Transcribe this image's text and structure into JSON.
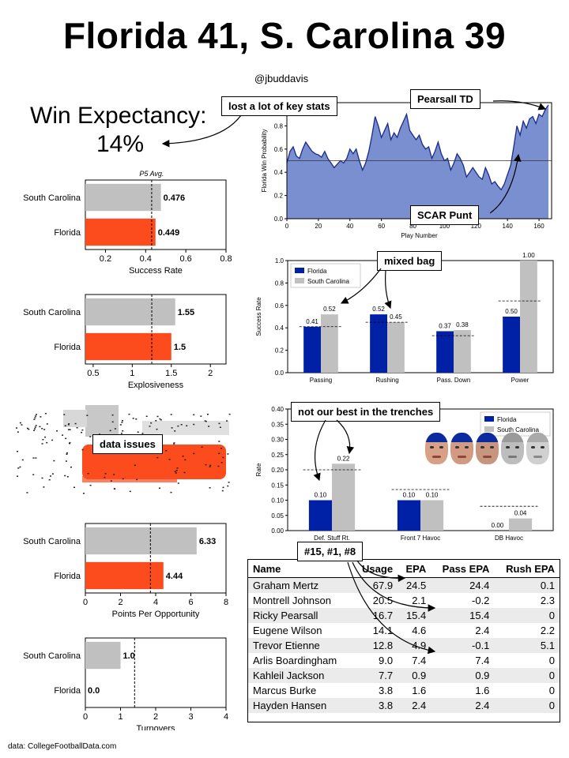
{
  "title": "Florida 41, S. Carolina 39",
  "handle": "@jbuddavis",
  "win_expectancy": {
    "label": "Win Expectancy:",
    "value": "14%"
  },
  "source": "data: CollegeFootballData.com",
  "callouts": {
    "key_stats": "lost a lot of key stats",
    "pearsall": "Pearsall TD",
    "scar_punt": "SCAR Punt",
    "mixed_bag": "mixed bag",
    "trenches": "not our best in the trenches",
    "data_issues": "data issues",
    "players": "#15, #1, #8"
  },
  "colors": {
    "florida_bar": "#fc4c1e",
    "scar_bar": "#c0c0c0",
    "florida_blue": "#0021a5",
    "wp_fill": "#7a8fd0",
    "wp_line": "#1a2a8a"
  },
  "chart_data": [
    {
      "type": "bar",
      "orientation": "horizontal",
      "name": "success_rate",
      "categories": [
        "South Carolina",
        "Florida"
      ],
      "values": [
        0.476,
        0.449
      ],
      "labels": [
        "0.476",
        "0.449"
      ],
      "reference": {
        "label": "P5 Avg.",
        "value": 0.43
      },
      "xlim": [
        0.1,
        0.8
      ],
      "ticks": [
        0.2,
        0.4,
        0.6,
        0.8
      ],
      "tick_labels": [
        "0.2",
        "0.4",
        "0.6",
        "0.8"
      ],
      "xlabel": "Success Rate"
    },
    {
      "type": "bar",
      "orientation": "horizontal",
      "name": "explosiveness",
      "categories": [
        "South Carolina",
        "Florida"
      ],
      "values": [
        1.55,
        1.5
      ],
      "labels": [
        "1.55",
        "1.5"
      ],
      "reference": {
        "value": 1.25
      },
      "xlim": [
        0.4,
        2.2
      ],
      "ticks": [
        0.5,
        1.0,
        1.5,
        2.0
      ],
      "tick_labels": [
        "0.5",
        "1",
        "1.5",
        "2"
      ],
      "xlabel": "Explosiveness"
    },
    {
      "type": "bar",
      "orientation": "horizontal",
      "name": "points_per_opportunity",
      "categories": [
        "South Carolina",
        "Florida"
      ],
      "values": [
        6.33,
        4.44
      ],
      "labels": [
        "6.33",
        "4.44"
      ],
      "reference": {
        "value": 3.7
      },
      "xlim": [
        0,
        8
      ],
      "ticks": [
        0,
        2,
        4,
        6,
        8
      ],
      "tick_labels": [
        "0",
        "2",
        "4",
        "6",
        "8"
      ],
      "xlabel": "Points Per Opportunity"
    },
    {
      "type": "bar",
      "orientation": "horizontal",
      "name": "turnovers",
      "categories": [
        "South Carolina",
        "Florida"
      ],
      "values": [
        1.0,
        0.0
      ],
      "labels": [
        "1.0",
        "0.0"
      ],
      "reference": {
        "value": 1.4
      },
      "xlim": [
        0,
        4
      ],
      "ticks": [
        0,
        1,
        2,
        3,
        4
      ],
      "tick_labels": [
        "0",
        "1",
        "2",
        "3",
        "4"
      ],
      "xlabel": "Turnovers"
    },
    {
      "type": "area",
      "name": "win_probability",
      "ylabel": "Florida Win Probability",
      "xlabel": "Play Number",
      "xlim": [
        0,
        168
      ],
      "ylim": [
        0,
        1
      ],
      "xticks": [
        0,
        20,
        40,
        60,
        80,
        100,
        120,
        140,
        160
      ],
      "yticks": [
        0.0,
        0.2,
        0.4,
        0.6,
        0.8,
        1.0
      ],
      "ytick_labels": [
        "0.0",
        "0.2",
        "0.4",
        "0.6",
        "0.8",
        "1.0"
      ],
      "reference": 0.5,
      "x": [
        0,
        2,
        4,
        6,
        8,
        10,
        12,
        14,
        16,
        18,
        20,
        22,
        24,
        26,
        28,
        30,
        32,
        34,
        36,
        38,
        40,
        42,
        44,
        46,
        48,
        50,
        52,
        54,
        56,
        58,
        60,
        62,
        64,
        66,
        68,
        70,
        72,
        74,
        76,
        78,
        80,
        82,
        84,
        86,
        88,
        90,
        92,
        94,
        96,
        98,
        100,
        102,
        104,
        106,
        108,
        110,
        112,
        114,
        116,
        118,
        120,
        122,
        124,
        126,
        128,
        130,
        132,
        134,
        136,
        138,
        140,
        142,
        144,
        146,
        148,
        150,
        152,
        154,
        156,
        158,
        160,
        162,
        164,
        166
      ],
      "y": [
        0.48,
        0.58,
        0.62,
        0.54,
        0.52,
        0.6,
        0.66,
        0.62,
        0.58,
        0.56,
        0.55,
        0.53,
        0.58,
        0.52,
        0.48,
        0.44,
        0.47,
        0.5,
        0.48,
        0.52,
        0.6,
        0.56,
        0.6,
        0.5,
        0.42,
        0.48,
        0.58,
        0.72,
        0.88,
        0.8,
        0.7,
        0.76,
        0.82,
        0.68,
        0.74,
        0.7,
        0.78,
        0.84,
        0.9,
        0.76,
        0.72,
        0.68,
        0.72,
        0.64,
        0.6,
        0.62,
        0.52,
        0.58,
        0.66,
        0.56,
        0.5,
        0.52,
        0.42,
        0.48,
        0.56,
        0.52,
        0.46,
        0.36,
        0.4,
        0.44,
        0.4,
        0.36,
        0.34,
        0.44,
        0.38,
        0.3,
        0.32,
        0.28,
        0.25,
        0.3,
        0.38,
        0.46,
        0.62,
        0.8,
        0.72,
        0.84,
        0.78,
        0.86,
        0.88,
        0.82,
        0.9,
        0.88,
        0.94,
        0.98
      ]
    },
    {
      "type": "bar",
      "name": "success_by_situation",
      "categories": [
        "Passing",
        "Rushing",
        "Pass. Down",
        "Power"
      ],
      "series": [
        {
          "name": "Florida",
          "values": [
            0.41,
            0.52,
            0.37,
            0.5
          ],
          "labels": [
            "0.41",
            "0.52",
            "0.37",
            "0.50"
          ]
        },
        {
          "name": "South Carolina",
          "values": [
            0.52,
            0.45,
            0.38,
            1.0
          ],
          "labels": [
            "0.52",
            "0.45",
            "0.38",
            "1.00"
          ]
        }
      ],
      "reference": [
        0.41,
        0.45,
        0.33,
        0.64
      ],
      "ylabel": "Success Rate",
      "ylim": [
        0,
        1.0
      ],
      "yticks": [
        0.0,
        0.2,
        0.4,
        0.6,
        0.8,
        1.0
      ],
      "ytick_labels": [
        "0.0",
        "0.2",
        "0.4",
        "0.6",
        "0.8",
        "1.0"
      ],
      "legend": "top-left"
    },
    {
      "type": "bar",
      "name": "line_play",
      "categories": [
        "Def. Stuff Rt.",
        "Front 7 Havoc",
        "DB Havoc"
      ],
      "series": [
        {
          "name": "Florida",
          "values": [
            0.1,
            0.1,
            0.0
          ],
          "labels": [
            "0.10",
            "0.10",
            "0.00"
          ]
        },
        {
          "name": "South Carolina",
          "values": [
            0.22,
            0.1,
            0.04
          ],
          "labels": [
            "0.22",
            "0.10",
            "0.04"
          ]
        }
      ],
      "reference": [
        0.2,
        0.135,
        0.08
      ],
      "ylabel": "Rate",
      "ylim": [
        0,
        0.4
      ],
      "yticks": [
        0.0,
        0.05,
        0.1,
        0.15,
        0.2,
        0.25,
        0.3,
        0.35,
        0.4
      ],
      "ytick_labels": [
        "0.00",
        "0.05",
        "0.10",
        "0.15",
        "0.20",
        "0.25",
        "0.30",
        "0.35",
        "0.40"
      ],
      "legend": "top-right"
    }
  ],
  "usage_table": {
    "columns": [
      "Name",
      "Usage",
      "EPA",
      "Pass EPA",
      "Rush EPA"
    ],
    "rows": [
      [
        "Graham Mertz",
        "67.9",
        "24.5",
        "24.4",
        "0.1"
      ],
      [
        "Montrell Johnson",
        "20.5",
        "2.1",
        "-0.2",
        "2.3"
      ],
      [
        "Ricky Pearsall",
        "16.7",
        "15.4",
        "15.4",
        "0"
      ],
      [
        "Eugene Wilson",
        "14.1",
        "4.6",
        "2.4",
        "2.2"
      ],
      [
        "Trevor Etienne",
        "12.8",
        "4.9",
        "-0.1",
        "5.1"
      ],
      [
        "Arlis Boardingham",
        "9.0",
        "7.4",
        "7.4",
        "0"
      ],
      [
        "Kahleil Jackson",
        "7.7",
        "0.9",
        "0.9",
        "0"
      ],
      [
        "Marcus Burke",
        "3.8",
        "1.6",
        "1.6",
        "0"
      ],
      [
        "Hayden Hansen",
        "3.8",
        "2.4",
        "2.4",
        "0"
      ]
    ]
  }
}
